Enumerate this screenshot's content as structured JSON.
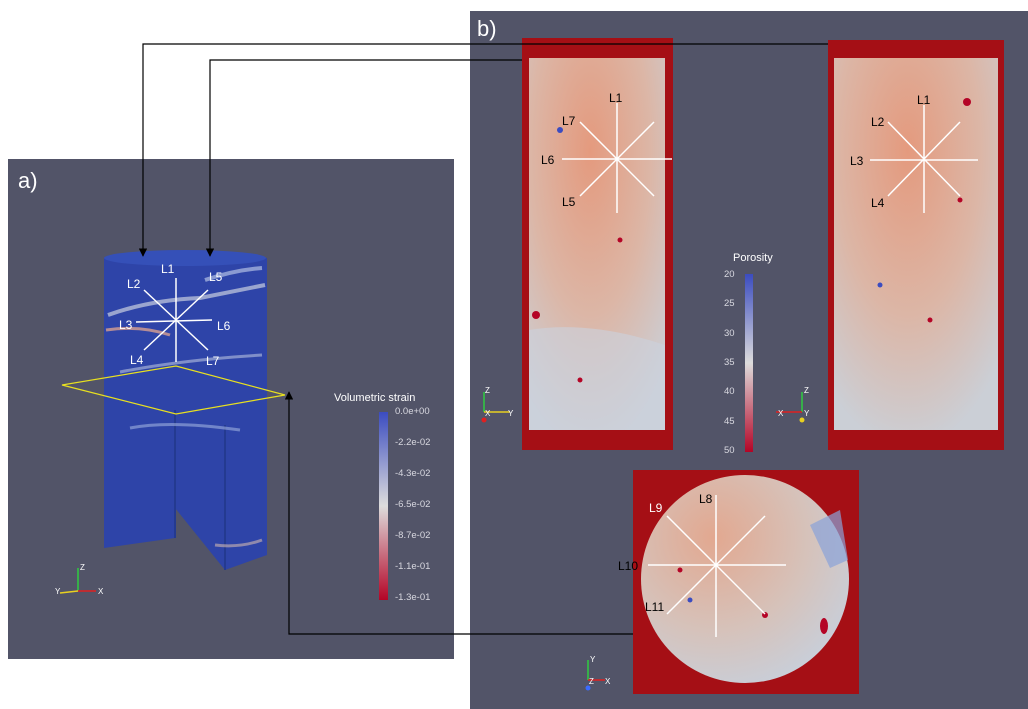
{
  "panel_a": {
    "label": "a)"
  },
  "panel_b": {
    "label": "b)"
  },
  "cylinder_lines": [
    "L1",
    "L2",
    "L3",
    "L4",
    "L5",
    "L6",
    "L7"
  ],
  "section_left_lines": [
    "L1",
    "L7",
    "L6",
    "L5"
  ],
  "section_right_lines": [
    "L1",
    "L2",
    "L3",
    "L4"
  ],
  "section_circle_lines": [
    "L8",
    "L9",
    "L10",
    "L11"
  ],
  "strain_colorbar": {
    "title": "Volumetric strain",
    "ticks": [
      "0.0e+00",
      "-2.2e-02",
      "-4.3e-02",
      "-6.5e-02",
      "-8.7e-02",
      "-1.1e-01",
      "-1.3e-01"
    ]
  },
  "porosity_colorbar": {
    "title": "Porosity",
    "ticks": [
      "20",
      "25",
      "30",
      "35",
      "40",
      "45",
      "50"
    ]
  },
  "axes": {
    "x": "X",
    "y": "Y",
    "z": "Z"
  },
  "colors": {
    "background": "#525468",
    "strain_low": "#b40426",
    "strain_high": "#3b4cc0",
    "section_border": "#a50f15",
    "arrow": "#000000",
    "plane": "#e8e020"
  }
}
